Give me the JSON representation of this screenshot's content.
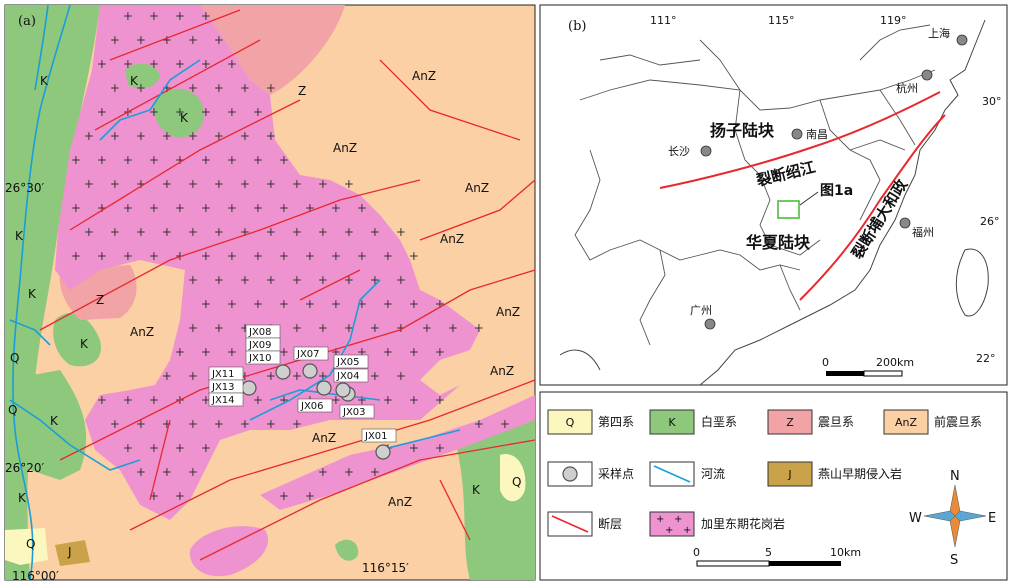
{
  "panel_a": {
    "label": "(a)",
    "lat_labels": [
      "26°30′",
      "26°20′"
    ],
    "lon_labels": [
      "116°00′",
      "116°15′"
    ],
    "unit_labels": [
      "K",
      "K",
      "K",
      "K",
      "K",
      "K",
      "K",
      "Z",
      "Z",
      "AnZ",
      "AnZ",
      "AnZ",
      "AnZ",
      "AnZ",
      "AnZ",
      "AnZ",
      "AnZ",
      "AnZ",
      "Q",
      "Q",
      "Q",
      "Q",
      "J",
      "K",
      "K"
    ],
    "samples": [
      "JX01",
      "JX03",
      "JX04",
      "JX05",
      "JX06",
      "JX07",
      "JX08",
      "JX09",
      "JX10",
      "JX11",
      "JX13",
      "JX14"
    ]
  },
  "panel_b": {
    "label": "(b)",
    "lon_labels": [
      "111°",
      "115°",
      "119°"
    ],
    "lat_labels": [
      "30°",
      "26°",
      "22°"
    ],
    "cities": [
      "上海",
      "杭州",
      "南昌",
      "长沙",
      "福州",
      "广州"
    ],
    "blocks": [
      "扬子陆块",
      "华夏陆块"
    ],
    "faults": [
      "裂断绍江",
      "裂断埔大和政"
    ],
    "box_label": "图1a",
    "scale": [
      "0",
      "200km"
    ]
  },
  "legend": {
    "items": [
      {
        "code": "Q",
        "name": "第四系",
        "color": "#fbf7be"
      },
      {
        "code": "K",
        "name": "白垩系",
        "color": "#8dc87c"
      },
      {
        "code": "Z",
        "name": "震旦系",
        "color": "#f1a3a6"
      },
      {
        "code": "AnZ",
        "name": "前震旦系",
        "color": "#fbd0a4"
      },
      {
        "code": "",
        "name": "采样点",
        "color": "#bbbbbb"
      },
      {
        "code": "",
        "name": "河流",
        "color": "#1b9ed8"
      },
      {
        "code": "J",
        "name": "燕山早期侵入岩",
        "color": "#c9a24a"
      },
      {
        "code": "",
        "name": "断层",
        "color": "#e8282d"
      },
      {
        "code": "",
        "name": "加里东期花岗岩",
        "color": "#ee93cf"
      }
    ],
    "scale": [
      "0",
      "5",
      "10km"
    ],
    "compass": [
      "N",
      "E",
      "S",
      "W"
    ]
  }
}
